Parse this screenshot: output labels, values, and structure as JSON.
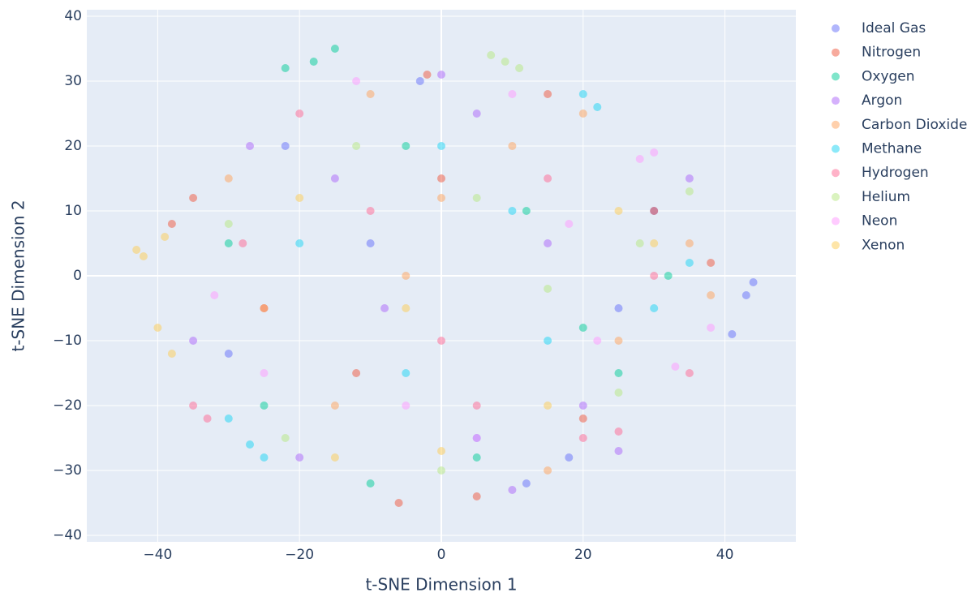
{
  "chart_data": {
    "type": "scatter",
    "x_label": "t-SNE Dimension 1",
    "y_label": "t-SNE Dimension 2",
    "xlim": [
      -50,
      50
    ],
    "ylim": [
      -41,
      41
    ],
    "xticks": [
      {
        "value": -40,
        "label": "−40"
      },
      {
        "value": -20,
        "label": "−20"
      },
      0,
      20,
      40
    ],
    "yticks": [
      {
        "value": -40,
        "label": "−40"
      },
      {
        "value": -30,
        "label": "−30"
      },
      {
        "value": -20,
        "label": "−20"
      },
      {
        "value": -10,
        "label": "−10"
      },
      0,
      10,
      20,
      30,
      40
    ],
    "grid": true,
    "opacity": 0.5,
    "legend": "right",
    "series": [
      {
        "name": "Ideal Gas",
        "color": "#636efa",
        "x": [
          43,
          41,
          44,
          -22,
          5,
          18,
          -10,
          30,
          -30,
          12,
          -3,
          25
        ],
        "values": [
          -3,
          -9,
          -1,
          20,
          -25,
          -28,
          5,
          10,
          -12,
          -32,
          30,
          -5
        ]
      },
      {
        "name": "Nitrogen",
        "color": "#EF553B",
        "x": [
          -35,
          -38,
          -6,
          -2,
          20,
          15,
          -25,
          5,
          30,
          -12,
          38,
          0
        ],
        "values": [
          12,
          8,
          -35,
          31,
          -22,
          28,
          -5,
          -34,
          10,
          -15,
          2,
          15
        ]
      },
      {
        "name": "Oxygen",
        "color": "#00cc96",
        "x": [
          -18,
          -22,
          -15,
          -10,
          5,
          25,
          -30,
          12,
          -5,
          32,
          20,
          -25
        ],
        "values": [
          33,
          32,
          35,
          -32,
          -28,
          -15,
          5,
          10,
          20,
          0,
          -8,
          -20
        ]
      },
      {
        "name": "Argon",
        "color": "#ab63fa",
        "x": [
          -27,
          10,
          25,
          -20,
          0,
          15,
          -35,
          35,
          -8,
          20,
          -15,
          5
        ],
        "values": [
          20,
          -33,
          -27,
          -28,
          31,
          5,
          -10,
          15,
          -5,
          -20,
          15,
          25
        ]
      },
      {
        "name": "Carbon Dioxide",
        "color": "#FFA15A",
        "x": [
          -5,
          10,
          25,
          -30,
          35,
          -15,
          0,
          20,
          -25,
          15,
          -10,
          38
        ],
        "values": [
          0,
          20,
          -10,
          15,
          5,
          -20,
          12,
          25,
          -5,
          -30,
          28,
          -3
        ]
      },
      {
        "name": "Methane",
        "color": "#19d3f3",
        "x": [
          -27,
          -25,
          -30,
          20,
          22,
          15,
          -5,
          10,
          30,
          -20,
          0,
          35
        ],
        "values": [
          -26,
          -28,
          -22,
          28,
          26,
          -10,
          -15,
          10,
          -5,
          5,
          20,
          2
        ]
      },
      {
        "name": "Hydrogen",
        "color": "#FF6692",
        "x": [
          -35,
          -33,
          25,
          -10,
          5,
          30,
          -20,
          15,
          0,
          -28,
          35,
          20
        ],
        "values": [
          -20,
          -22,
          -24,
          10,
          -20,
          0,
          25,
          15,
          -10,
          5,
          -15,
          -25
        ]
      },
      {
        "name": "Helium",
        "color": "#B6E880",
        "x": [
          9,
          7,
          11,
          35,
          -22,
          0,
          25,
          -12,
          15,
          -30,
          5,
          28
        ],
        "values": [
          33,
          34,
          32,
          13,
          -25,
          -30,
          -18,
          20,
          -2,
          8,
          12,
          5
        ]
      },
      {
        "name": "Neon",
        "color": "#FF97FF",
        "x": [
          30,
          28,
          -12,
          22,
          -25,
          5,
          38,
          -5,
          18,
          -32,
          10,
          33
        ],
        "values": [
          19,
          18,
          30,
          -10,
          -15,
          -25,
          -8,
          -20,
          8,
          -3,
          28,
          -14
        ]
      },
      {
        "name": "Xenon",
        "color": "#FECB52",
        "x": [
          -42,
          -40,
          -43,
          -39,
          -38,
          -5,
          15,
          -20,
          30,
          0,
          -15,
          25
        ],
        "values": [
          3,
          -8,
          4,
          6,
          -12,
          -5,
          -20,
          12,
          5,
          -27,
          -28,
          10
        ]
      }
    ]
  }
}
